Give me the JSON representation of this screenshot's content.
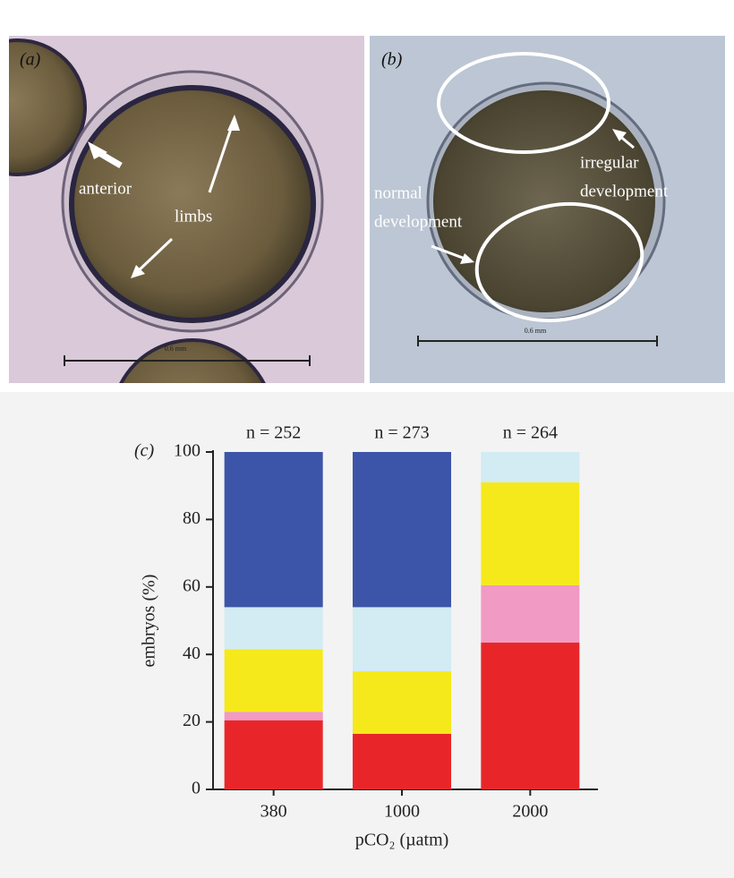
{
  "panels": [
    {
      "label": "(a)",
      "annotations": [
        "anterior",
        "limbs"
      ],
      "scale_label": "0.6 mm"
    },
    {
      "label": "(b)",
      "annotations": [
        "irregular",
        "development",
        "normal",
        "development"
      ],
      "scale_label": "0.6 mm"
    }
  ],
  "chart_data": {
    "type": "bar",
    "stacked": true,
    "panel_label": "(c)",
    "ylabel": "embryos (%)",
    "xlabel": "pCO₂ (µatm)",
    "categories": [
      "380",
      "1000",
      "2000"
    ],
    "bar_labels": [
      "n = 252",
      "n = 273",
      "n = 264"
    ],
    "series": [
      {
        "color": "#e8262a",
        "values": [
          20.5,
          16.5,
          43.5
        ]
      },
      {
        "color": "#f19ac4",
        "values": [
          2.5,
          0,
          17
        ]
      },
      {
        "color": "#f5e91c",
        "values": [
          18.5,
          18.5,
          30.5
        ]
      },
      {
        "color": "#d3ebf2",
        "values": [
          12.5,
          19,
          9
        ]
      },
      {
        "color": "#3c55a8",
        "values": [
          46,
          46,
          0
        ]
      }
    ],
    "ylim": [
      0,
      100
    ],
    "yticks": [
      0,
      20,
      40,
      60,
      80,
      100
    ],
    "grid": false
  }
}
